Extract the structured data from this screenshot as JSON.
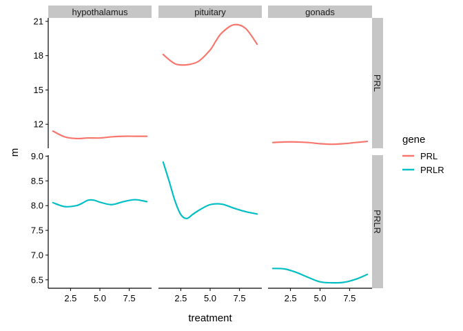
{
  "chart_data": {
    "type": "line",
    "xlabel": "treatment",
    "ylabel": "m",
    "x_ticks": [
      2.5,
      5.0,
      7.5
    ],
    "x_tick_labels": [
      "2.5",
      "5.0",
      "7.5"
    ],
    "xlim": [
      0.6,
      9.4
    ],
    "columns": [
      "hypothalamus",
      "pituitary",
      "gonads"
    ],
    "rows": [
      {
        "name": "PRL",
        "ylim": [
          9.9,
          21.3
        ],
        "y_ticks": [
          12,
          15,
          18,
          21
        ],
        "y_tick_labels": [
          "12",
          "15",
          "18",
          "21"
        ]
      },
      {
        "name": "PRLR",
        "ylim": [
          6.33,
          9.02
        ],
        "y_ticks": [
          6.5,
          7.0,
          7.5,
          8.0,
          8.5,
          9.0
        ],
        "y_tick_labels": [
          "6.5",
          "7.0",
          "7.5",
          "8.0",
          "8.5",
          "9.0"
        ]
      }
    ],
    "legend": {
      "title": "gene",
      "placement": "right",
      "entries": [
        "PRL",
        "PRLR"
      ]
    },
    "colors": {
      "PRL": "#F8766D",
      "PRLR": "#00BFC4",
      "strip": "#C6C6C6"
    },
    "grid": false,
    "series": [
      {
        "name": "PRL",
        "panel": "hypothalamus",
        "x": [
          1,
          2,
          3,
          4,
          5,
          6,
          7,
          8,
          9
        ],
        "values": [
          11.4,
          10.9,
          10.75,
          10.8,
          10.8,
          10.9,
          10.95,
          10.95,
          10.95
        ]
      },
      {
        "name": "PRL",
        "panel": "pituitary",
        "x": [
          1,
          2,
          3,
          4,
          5,
          5.5,
          6,
          7,
          8,
          9
        ],
        "values": [
          18.1,
          17.3,
          17.2,
          17.5,
          18.5,
          19.3,
          20.0,
          20.7,
          20.4,
          19.0
        ]
      },
      {
        "name": "PRL",
        "panel": "gonads",
        "x": [
          1,
          2,
          3,
          4,
          5,
          6,
          7,
          8,
          9
        ],
        "values": [
          10.4,
          10.45,
          10.45,
          10.4,
          10.3,
          10.25,
          10.3,
          10.4,
          10.5
        ]
      },
      {
        "name": "PRLR",
        "panel": "hypothalamus",
        "x": [
          1,
          2,
          3,
          3.5,
          4,
          4.5,
          5,
          6,
          7,
          8,
          9
        ],
        "values": [
          8.06,
          7.98,
          8.0,
          8.05,
          8.11,
          8.11,
          8.07,
          8.02,
          8.08,
          8.12,
          8.08
        ]
      },
      {
        "name": "PRLR",
        "panel": "pituitary",
        "x": [
          1,
          1.5,
          2,
          2.5,
          3,
          3.5,
          4,
          5,
          6,
          7,
          8,
          9
        ],
        "values": [
          8.88,
          8.5,
          8.1,
          7.82,
          7.74,
          7.82,
          7.9,
          8.02,
          8.03,
          7.95,
          7.88,
          7.83
        ]
      },
      {
        "name": "PRLR",
        "panel": "gonads",
        "x": [
          1,
          2,
          3,
          4,
          5,
          6,
          7,
          8,
          9
        ],
        "values": [
          6.73,
          6.72,
          6.65,
          6.55,
          6.46,
          6.44,
          6.45,
          6.51,
          6.61
        ]
      }
    ]
  }
}
